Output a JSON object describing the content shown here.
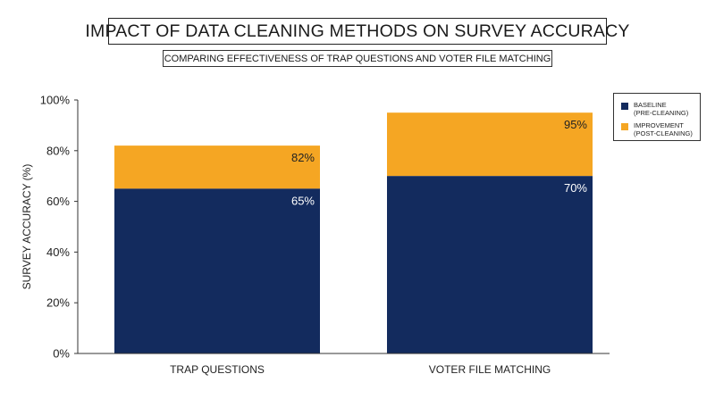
{
  "title": "IMPACT OF DATA CLEANING METHODS ON SURVEY ACCURACY",
  "subtitle": "COMPARING EFFECTIVENESS OF TRAP QUESTIONS AND VOTER FILE MATCHING",
  "colors": {
    "baseline": "#132b5e",
    "improvement": "#f5a623",
    "axis": "#333333"
  },
  "legend": [
    {
      "line1": "BASELINE",
      "line2": "(PRE-CLEANING)",
      "color": "#132b5e"
    },
    {
      "line1": "IMPROVEMENT",
      "line2": "(POST-CLEANING)",
      "color": "#f5a623"
    }
  ],
  "chart_data": {
    "type": "bar",
    "stacked": true,
    "categories": [
      "TRAP QUESTIONS",
      "VOTER FILE MATCHING"
    ],
    "series": [
      {
        "name": "BASELINE (PRE-CLEANING)",
        "values": [
          65,
          70
        ]
      },
      {
        "name": "IMPROVEMENT (POST-CLEANING)",
        "values": [
          17,
          25
        ]
      }
    ],
    "data_labels": {
      "baseline": [
        "65%",
        "70%"
      ],
      "total": [
        "82%",
        "95%"
      ]
    },
    "ylabel": "SURVEY ACCURACY (%)",
    "xlabel": "",
    "ylim": [
      0,
      100
    ],
    "yticks": [
      "0%",
      "20%",
      "40%",
      "60%",
      "80%",
      "100%"
    ],
    "ytick_values": [
      0,
      20,
      40,
      60,
      80,
      100
    ],
    "grid": false,
    "legend_position": "right"
  }
}
